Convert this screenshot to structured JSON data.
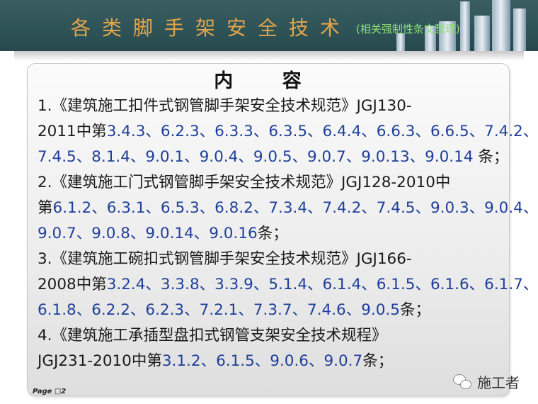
{
  "header": {
    "title": "各类脚手架安全技术",
    "subtitle": "(相关强制性条文整理)"
  },
  "content": {
    "heading": "内 容",
    "lines": [
      [
        {
          "t": "1.《建筑施工扣件式钢管脚手架安全技术规范》JGJ130-",
          "c": "k"
        }
      ],
      [
        {
          "t": "2011中第",
          "c": "k"
        },
        {
          "t": "3.4.3、6.2.3、6.3.3、6.3.5、6.4.4、6.6.3、6.6.5、7.4.2、",
          "c": "b"
        }
      ],
      [
        {
          "t": "7.4.5、8.1.4、9.0.1、9.0.4、9.0.5、9.0.7、9.0.13、9.0.14",
          "c": "b"
        },
        {
          "t": " 条；",
          "c": "k"
        }
      ],
      [
        {
          "t": "2.《建筑施工门式钢管脚手架安全技术规范》JGJ128-2010中",
          "c": "k"
        }
      ],
      [
        {
          "t": "第",
          "c": "k"
        },
        {
          "t": "6.1.2、6.3.1、6.5.3、6.8.2、7.3.4、7.4.2、7.4.5、9.0.3、9.0.4、",
          "c": "b"
        }
      ],
      [
        {
          "t": "9.0.7、9.0.8、9.0.14、9.0.16",
          "c": "b"
        },
        {
          "t": "条；",
          "c": "k"
        }
      ],
      [
        {
          "t": "3.《建筑施工碗扣式钢管脚手架安全技术规范》JGJ166-",
          "c": "k"
        }
      ],
      [
        {
          "t": "2008中第",
          "c": "k"
        },
        {
          "t": "3.2.4、3.3.8、3.3.9、5.1.4、6.1.4、6.1.5、6.1.6、6.1.7、",
          "c": "b"
        }
      ],
      [
        {
          "t": "6.1.8、6.2.2、6.2.3、7.2.1、7.3.7、7.4.6、9.0.5",
          "c": "b"
        },
        {
          "t": "条；",
          "c": "k"
        }
      ],
      [
        {
          "t": "4.《建筑施工承插型盘扣式钢管支架安全技术规程》",
          "c": "k"
        }
      ],
      [
        {
          "t": "JGJ231-2010中第",
          "c": "k"
        },
        {
          "t": "3.1.2、6.1.5、9.0.6、9.0.7",
          "c": "b"
        },
        {
          "t": "条；",
          "c": "k"
        }
      ]
    ]
  },
  "footer": {
    "page_label": "Page □2",
    "watermark": "施工者",
    "watermark_icon": "wechat-icon"
  },
  "colors": {
    "banner": "#2e5356",
    "title": "#e4a44a",
    "subtitle": "#8fe07a",
    "code_blue": "#1f3f9a",
    "text": "#1a1a1a"
  }
}
